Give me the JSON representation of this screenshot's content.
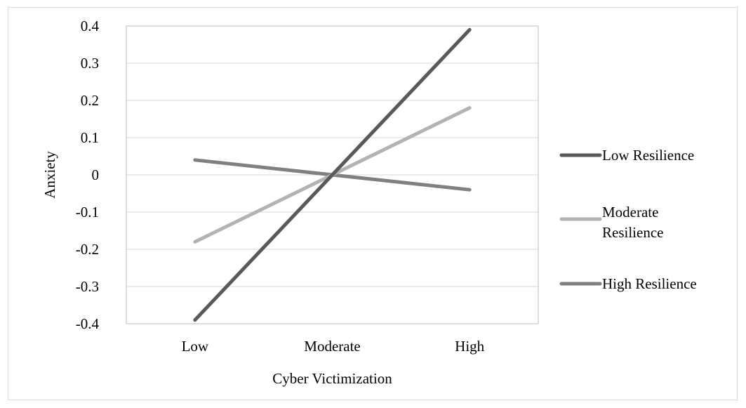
{
  "chart_data": {
    "type": "line",
    "title": "",
    "xlabel": "Cyber Victimization",
    "ylabel": "Anxiety",
    "categories": [
      "Low",
      "Moderate",
      "High"
    ],
    "ylim": [
      -0.4,
      0.4
    ],
    "yticks": [
      "0.4",
      "0.3",
      "0.2",
      "0.1",
      "0",
      "-0.1",
      "-0.2",
      "-0.3",
      "-0.4"
    ],
    "grid": true,
    "legend_position": "right",
    "series": [
      {
        "name": "Low Resilience",
        "values": [
          -0.39,
          0.0,
          0.39
        ],
        "color": "#595959",
        "label_lines": [
          "Low Resilience"
        ]
      },
      {
        "name": "Moderate Resilience",
        "values": [
          -0.18,
          0.0,
          0.18
        ],
        "color": "#b3b3b3",
        "label_lines": [
          "Moderate",
          "Resilience"
        ]
      },
      {
        "name": "High Resilience",
        "values": [
          0.04,
          0.0,
          -0.04
        ],
        "color": "#808080",
        "label_lines": [
          "High Resilience"
        ]
      }
    ]
  }
}
